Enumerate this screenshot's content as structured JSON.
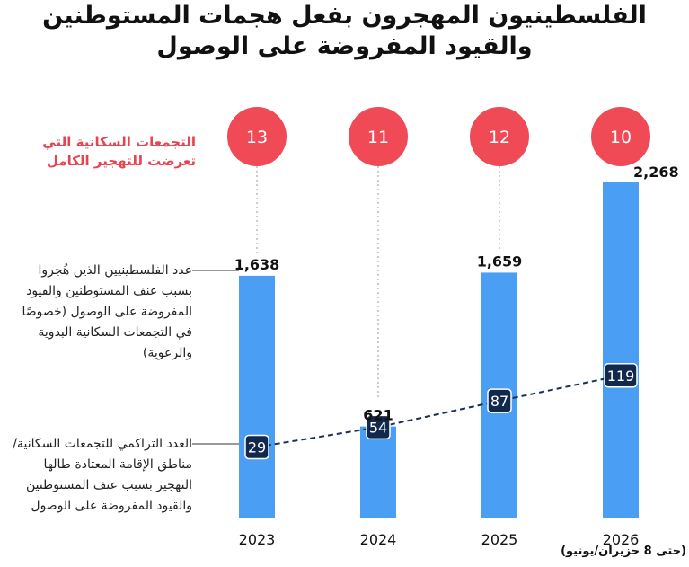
{
  "title_line1": "الفلسطينيون المهجرون بفعل هجمات المستوطنين",
  "title_line2": "والقيود المفروضة على الوصول",
  "legend_circles": "التجمعات السكانية التي تعرضت للتهجير الكامل",
  "legend_bars": "عدد الفلسطينيين الذين هُجروا بسبب عنف المستوطنين والقيود المفروضة على الوصول (خصوصًا في التجمعات السكانية البدوية والرعوية)",
  "legend_line": "العدد التراكمي للتجمعات السكانية/مناطق الإقامة المعتادة طالها التهجير بسبب عنف المستوطنين والقيود المفروضة على الوصول",
  "note_2026": "(حتى 8 حزيران/يونيو)",
  "colors": {
    "bar": "#4a9ff5",
    "circle": "#ef4a55",
    "line": "#1b2f55",
    "box": "#13284d",
    "legend_circle_text": "#e8434f"
  },
  "chart_data": {
    "type": "bar",
    "categories": [
      "2023",
      "2024",
      "2025",
      "2026"
    ],
    "series": [
      {
        "name": "عدد الفلسطينيين الذين هُجروا",
        "type": "bar",
        "values": [
          1638,
          621,
          1659,
          2268
        ],
        "labels": [
          "1,638",
          "621",
          "1,659",
          "2,268"
        ]
      },
      {
        "name": "العدد التراكمي للتجمعات السكانية",
        "type": "line",
        "values": [
          29,
          54,
          87,
          119
        ]
      },
      {
        "name": "التجمعات السكانية التي تعرضت للتهجير الكامل",
        "type": "circle",
        "values": [
          13,
          11,
          12,
          10
        ]
      }
    ],
    "ylim": [
      0,
      2600
    ],
    "grid": false
  }
}
